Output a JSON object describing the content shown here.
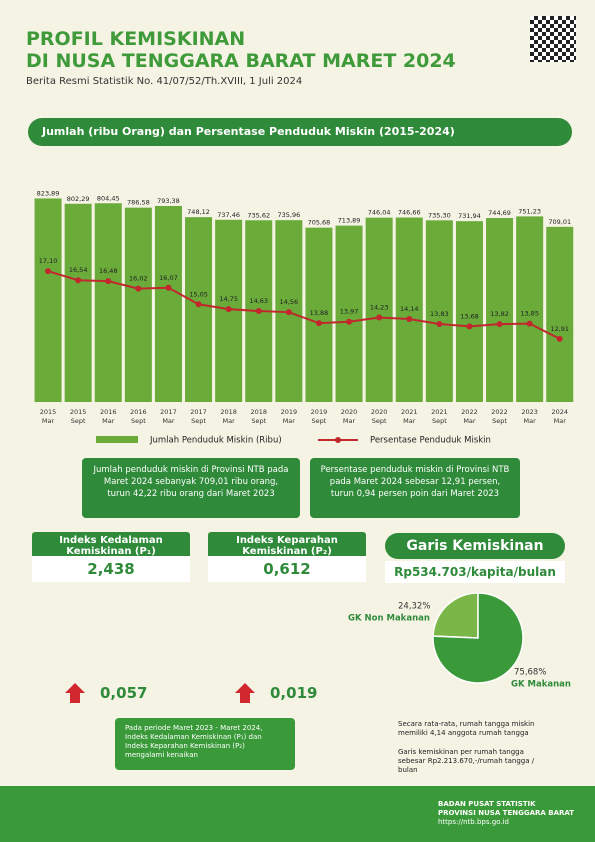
{
  "header": {
    "title_line1": "PROFIL KEMISKINAN",
    "title_line2": "DI NUSA TENGGARA BARAT MARET 2024",
    "subtitle": "Berita Resmi Statistik No. 41/07/52/Th.XVIII, 1 Juli 2024"
  },
  "chart_data": [
    {
      "type": "bar-line",
      "title": "Jumlah (ribu Orang) dan Persentase Penduduk Miskin (2015-2024)",
      "categories": [
        [
          "2015",
          "Mar"
        ],
        [
          "2015",
          "Sept"
        ],
        [
          "2016",
          "Mar"
        ],
        [
          "2016",
          "Sept"
        ],
        [
          "2017",
          "Mar"
        ],
        [
          "2017",
          "Sept"
        ],
        [
          "2018",
          "Mar"
        ],
        [
          "2018",
          "Sept"
        ],
        [
          "2019",
          "Mar"
        ],
        [
          "2019",
          "Sept"
        ],
        [
          "2020",
          "Mar"
        ],
        [
          "2020",
          "Sept"
        ],
        [
          "2021",
          "Mar"
        ],
        [
          "2021",
          "Sept"
        ],
        [
          "2022",
          "Mar"
        ],
        [
          "2022",
          "Sept"
        ],
        [
          "2023",
          "Mar"
        ],
        [
          "2024",
          "Mar"
        ]
      ],
      "series": [
        {
          "name": "Jumlah Penduduk Miskin (Ribu)",
          "color": "#6aab3a",
          "values": [
            823.89,
            802.29,
            804.45,
            786.58,
            793.38,
            748.12,
            737.46,
            735.62,
            735.96,
            705.68,
            713.89,
            746.04,
            746.66,
            735.3,
            731.94,
            744.69,
            751.23,
            709.01
          ],
          "value_labels": [
            "823,89",
            "802,29",
            "804,45",
            "786,58",
            "793,38",
            "748,12",
            "737,46",
            "735,62",
            "735,96",
            "705,68",
            "713,89",
            "746,04",
            "746,66",
            "735,30",
            "731,94",
            "744,69",
            "751,23",
            "709,01"
          ]
        },
        {
          "name": "Persentase Penduduk Miskin",
          "color": "#c1272d",
          "axis": "y2",
          "values": [
            17.1,
            16.54,
            16.48,
            16.02,
            16.07,
            15.05,
            14.75,
            14.63,
            14.56,
            13.88,
            13.97,
            14.23,
            14.14,
            13.83,
            13.68,
            13.82,
            13.85,
            12.91
          ],
          "value_labels": [
            "17,10",
            "16,54",
            "16,48",
            "16,02",
            "16,07",
            "15,05",
            "14,75",
            "14,63",
            "14,56",
            "13,88",
            "13,97",
            "14,23",
            "14,14",
            "13,83",
            "13,68",
            "13,82",
            "13,85",
            "12,91"
          ]
        }
      ],
      "ylim": [
        0,
        850
      ],
      "y2lim": [
        9,
        22
      ]
    },
    {
      "type": "pie",
      "title": "Garis Kemiskinan",
      "subtitle": "Rp534.703/kapita/bulan",
      "categories": [
        "GK Non Makanan",
        "GK Makanan"
      ],
      "values": [
        24.32,
        75.68
      ],
      "value_labels": [
        "24,32%",
        "75,68%"
      ],
      "colors": [
        "#7ab648",
        "#3a9a3a"
      ]
    }
  ],
  "boxes": {
    "left": "Jumlah penduduk miskin di Provinsi NTB pada Maret 2024 sebanyak 709,01 ribu orang, turun 42,22 ribu orang dari Maret 2023",
    "right": "Persentase penduduk miskin di Provinsi NTB pada Maret 2024 sebesar 12,91 persen, turun 0,94 persen poin dari Maret 2023"
  },
  "indices": [
    {
      "label": "Indeks Kedalaman Kemiskinan (P₁)",
      "value": "2,438",
      "change": "0,057"
    },
    {
      "label": "Indeks Keparahan Kemiskinan (P₂)",
      "value": "0,612",
      "change": "0,019"
    }
  ],
  "notes": {
    "indices": "Pada periode Maret 2023 - Maret 2024, Indeks Kedalaman Kemiskinan (P₁) dan Indeks Keparahan Kemiskinan (P₂) mengalami kenaikan",
    "household": "Secara rata-rata, rumah tangga miskin memiliki 4,14 anggota rumah tangga",
    "line": "Garis kemiskinan per rumah tangga sebesar Rp2.213.670,-/rumah tangga / bulan"
  },
  "footer": {
    "org": "BADAN PUSAT STATISTIK",
    "province": "PROVINSI NUSA TENGGARA BARAT",
    "url": "https://ntb.bps.go.id"
  }
}
